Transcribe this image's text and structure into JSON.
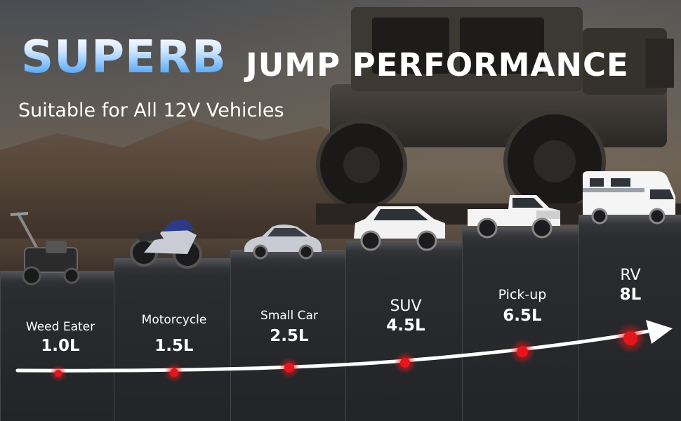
{
  "header": {
    "title_highlight": "SUPERB",
    "title_rest": "JUMP PERFORMANCE",
    "subtitle": "Suitable for All 12V Vehicles"
  },
  "vehicles": [
    {
      "name": "Weed Eater",
      "value": "1.0L",
      "icon": "lawn-mower-icon"
    },
    {
      "name": "Motorcycle",
      "value": "1.5L",
      "icon": "motorcycle-icon"
    },
    {
      "name": "Small Car",
      "value": "2.5L",
      "icon": "sedan-car-icon"
    },
    {
      "name": "SUV",
      "value": "4.5L",
      "icon": "suv-icon"
    },
    {
      "name": "Pick-up",
      "value": "6.5L",
      "icon": "pickup-truck-icon"
    },
    {
      "name": "RV",
      "value": "8L",
      "icon": "rv-camper-icon"
    }
  ],
  "colors": {
    "accent_red": "#e5161b",
    "title_blue": "#6fb6ff",
    "step_dark": "#232427"
  }
}
